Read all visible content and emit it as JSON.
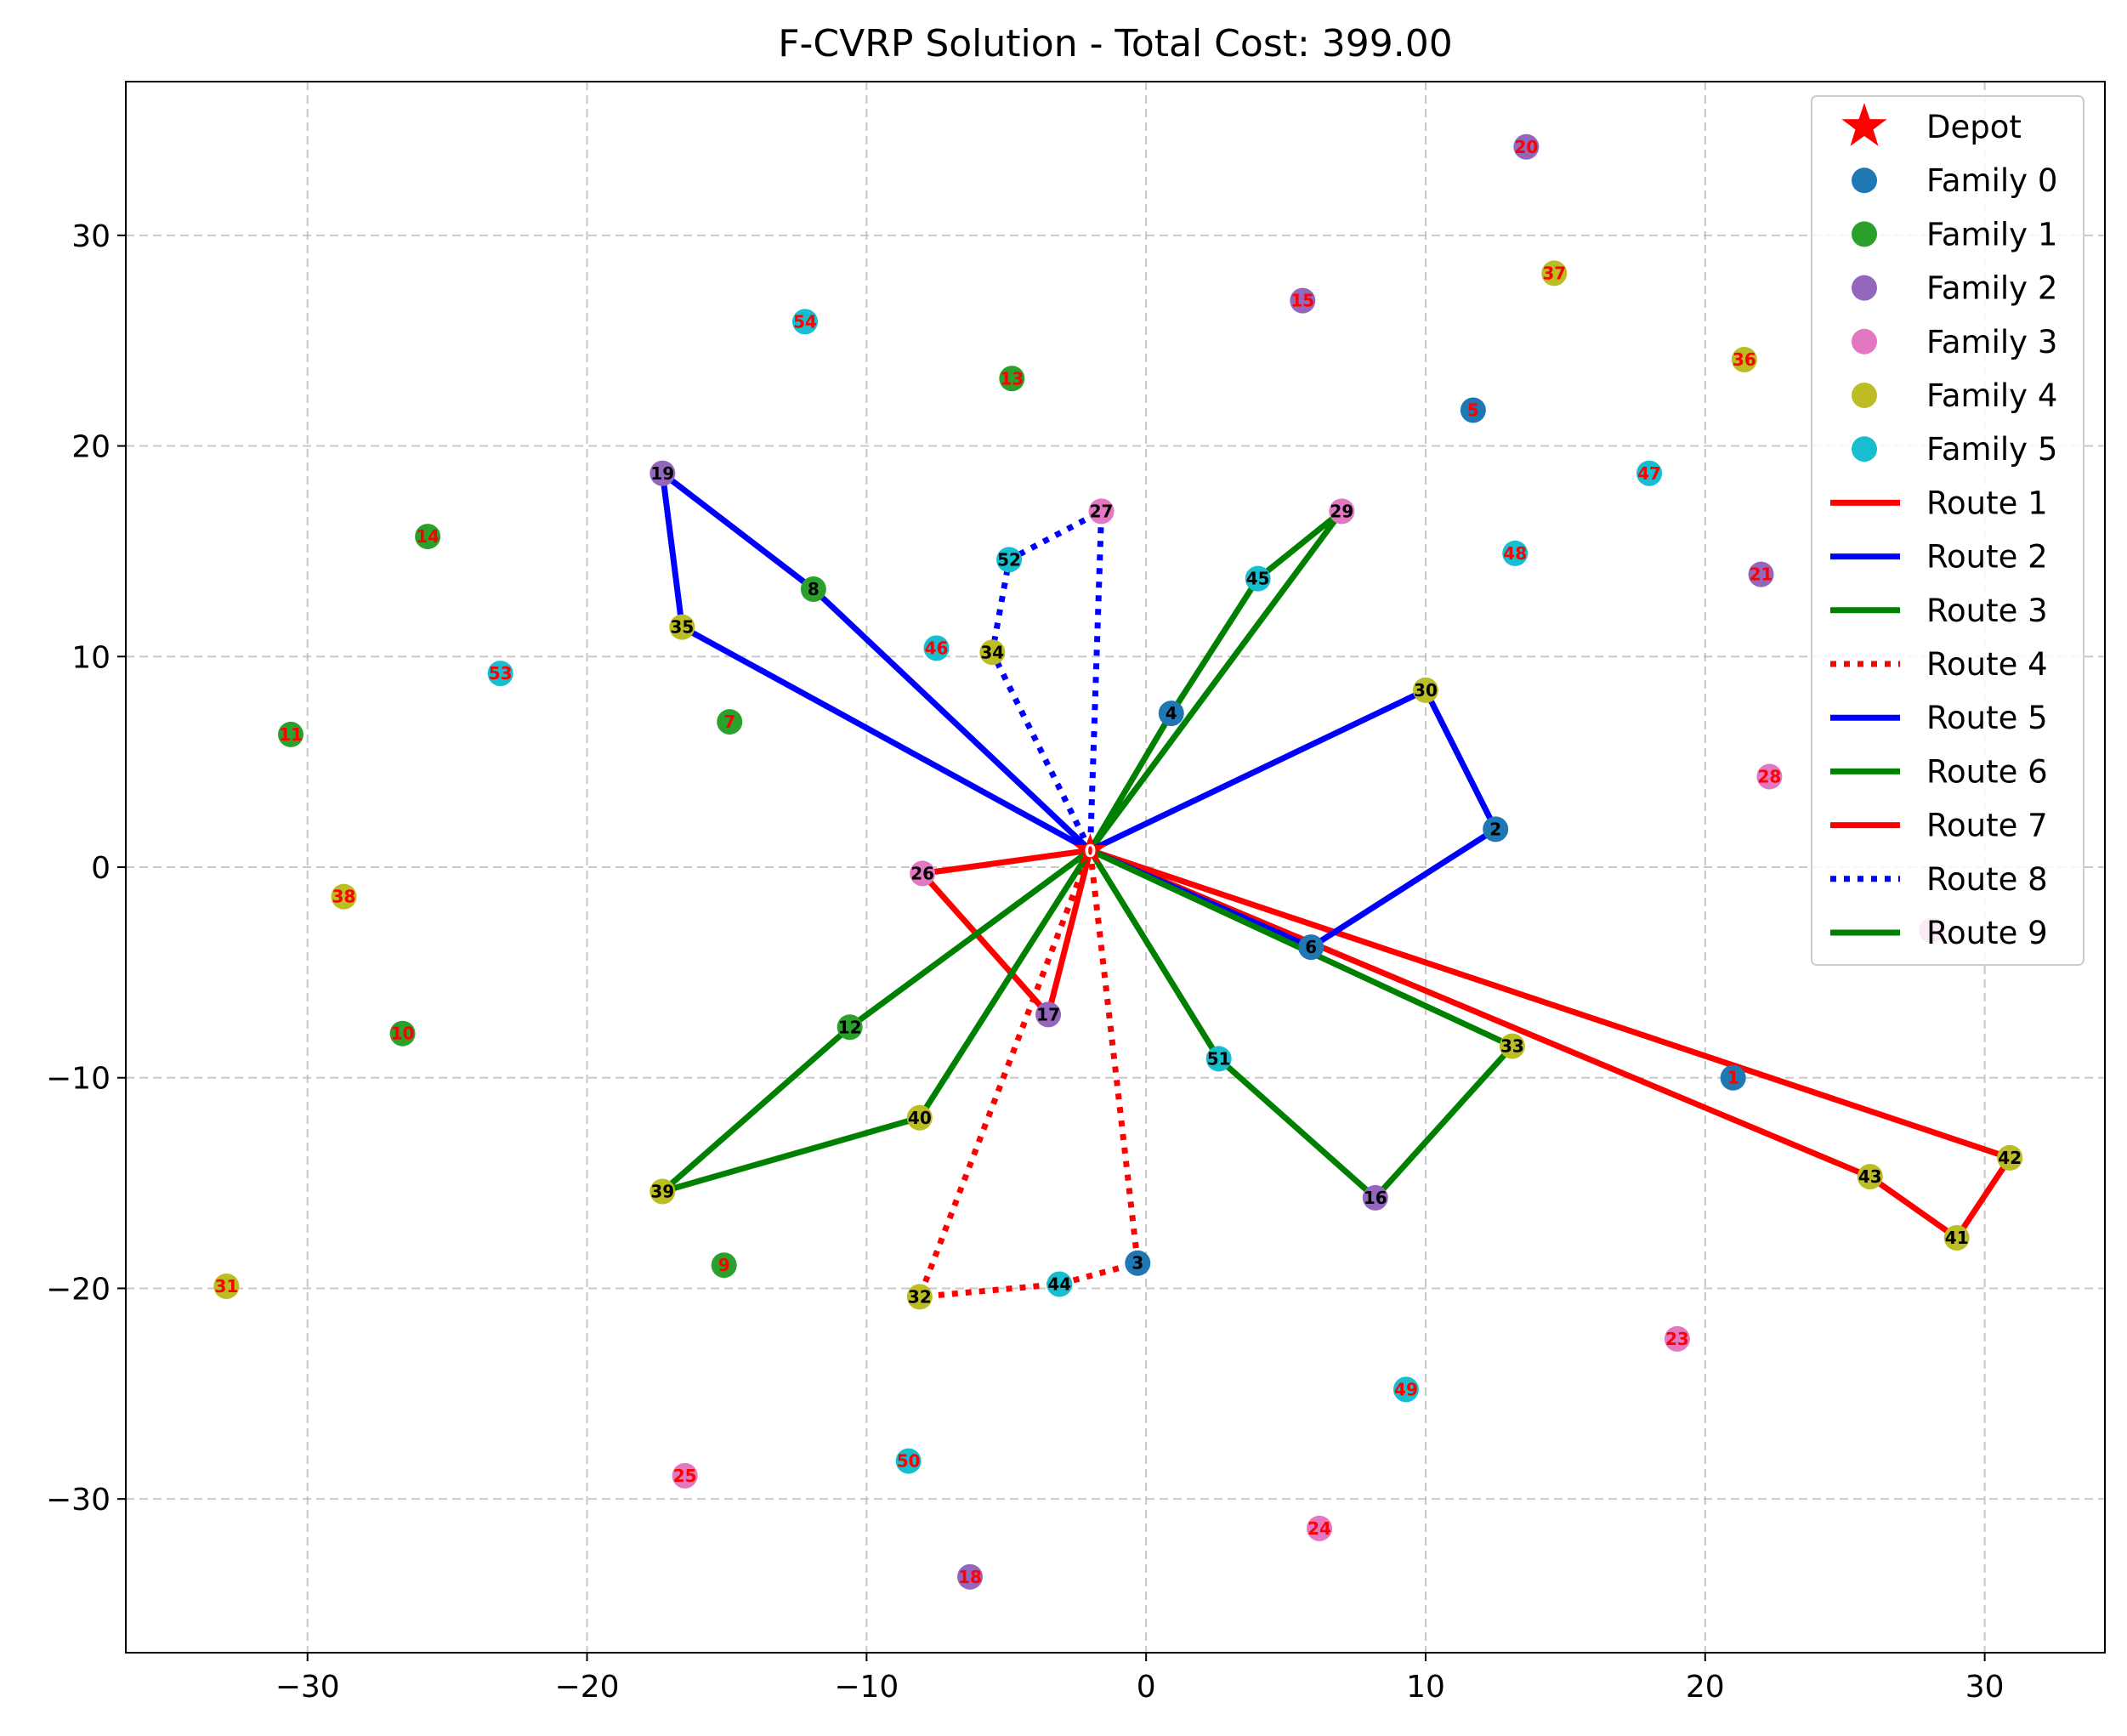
{
  "chart_data": {
    "type": "scatter",
    "title": "F-CVRP Solution - Total Cost: 399.00",
    "xlabel": "",
    "ylabel": "",
    "xlim": [
      -36.5,
      34.3
    ],
    "ylim": [
      -37.3,
      37.3
    ],
    "xticks": [
      -30,
      -20,
      -10,
      0,
      10,
      20,
      30
    ],
    "yticks": [
      -30,
      -20,
      -10,
      0,
      10,
      20,
      30
    ],
    "grid": true,
    "legend_position": "top-right",
    "depot": {
      "label": "0",
      "x": -2,
      "y": 0.8,
      "name": "Depot",
      "color": "#ff0000"
    },
    "families": [
      {
        "name": "Family 0",
        "color": "#1f77b4"
      },
      {
        "name": "Family 1",
        "color": "#2ca02c"
      },
      {
        "name": "Family 2",
        "color": "#9467bd"
      },
      {
        "name": "Family 3",
        "color": "#e377c2"
      },
      {
        "name": "Family 4",
        "color": "#bcbd22"
      },
      {
        "name": "Family 5",
        "color": "#17becf"
      }
    ],
    "nodes": [
      {
        "id": "1",
        "x": 21,
        "y": -10,
        "family": 0,
        "visited": false
      },
      {
        "id": "2",
        "x": 12.5,
        "y": 1.8,
        "family": 0,
        "visited": true
      },
      {
        "id": "3",
        "x": -0.3,
        "y": -18.8,
        "family": 0,
        "visited": true
      },
      {
        "id": "4",
        "x": 0.9,
        "y": 7.3,
        "family": 0,
        "visited": true
      },
      {
        "id": "5",
        "x": 11.7,
        "y": 21.7,
        "family": 0,
        "visited": false
      },
      {
        "id": "6",
        "x": 5.9,
        "y": -3.8,
        "family": 0,
        "visited": true
      },
      {
        "id": "7",
        "x": -14.9,
        "y": 6.9,
        "family": 1,
        "visited": false
      },
      {
        "id": "8",
        "x": -11.9,
        "y": 13.2,
        "family": 1,
        "visited": true
      },
      {
        "id": "9",
        "x": -15.1,
        "y": -18.9,
        "family": 1,
        "visited": false
      },
      {
        "id": "10",
        "x": -26.6,
        "y": -7.9,
        "family": 1,
        "visited": false
      },
      {
        "id": "11",
        "x": -30.6,
        "y": 6.3,
        "family": 1,
        "visited": false
      },
      {
        "id": "12",
        "x": -10.6,
        "y": -7.6,
        "family": 1,
        "visited": true
      },
      {
        "id": "13",
        "x": -4.8,
        "y": 23.2,
        "family": 1,
        "visited": false
      },
      {
        "id": "14",
        "x": -25.7,
        "y": 15.7,
        "family": 1,
        "visited": false
      },
      {
        "id": "15",
        "x": 5.6,
        "y": 26.9,
        "family": 2,
        "visited": false
      },
      {
        "id": "16",
        "x": 8.2,
        "y": -15.7,
        "family": 2,
        "visited": true
      },
      {
        "id": "17",
        "x": -3.5,
        "y": -7.0,
        "family": 2,
        "visited": true
      },
      {
        "id": "18",
        "x": -6.3,
        "y": -33.7,
        "family": 2,
        "visited": false
      },
      {
        "id": "19",
        "x": -17.3,
        "y": 18.7,
        "family": 2,
        "visited": true
      },
      {
        "id": "20",
        "x": 13.6,
        "y": 34.2,
        "family": 2,
        "visited": false
      },
      {
        "id": "21",
        "x": 22.0,
        "y": 13.9,
        "family": 2,
        "visited": false
      },
      {
        "id": "23",
        "x": 19.0,
        "y": -22.4,
        "family": 3,
        "visited": false
      },
      {
        "id": "24",
        "x": 6.2,
        "y": -31.4,
        "family": 3,
        "visited": false
      },
      {
        "id": "25",
        "x": -16.5,
        "y": -28.9,
        "family": 3,
        "visited": false
      },
      {
        "id": "26",
        "x": -8.0,
        "y": -0.3,
        "family": 3,
        "visited": true
      },
      {
        "id": "27",
        "x": -1.6,
        "y": 16.9,
        "family": 3,
        "visited": true
      },
      {
        "id": "28",
        "x": 22.3,
        "y": 4.3,
        "family": 3,
        "visited": false
      },
      {
        "id": "29",
        "x": 7.0,
        "y": 16.9,
        "family": 3,
        "visited": true
      },
      {
        "id": "30",
        "x": 10.0,
        "y": 8.4,
        "family": 4,
        "visited": true
      },
      {
        "id": "31",
        "x": -32.9,
        "y": -19.9,
        "family": 4,
        "visited": false
      },
      {
        "id": "32",
        "x": -8.1,
        "y": -20.4,
        "family": 4,
        "visited": true
      },
      {
        "id": "33",
        "x": 13.1,
        "y": -8.5,
        "family": 4,
        "visited": true
      },
      {
        "id": "34",
        "x": -5.5,
        "y": 10.2,
        "family": 4,
        "visited": true
      },
      {
        "id": "35",
        "x": -16.6,
        "y": 11.4,
        "family": 4,
        "visited": true
      },
      {
        "id": "36",
        "x": 21.4,
        "y": 24.1,
        "family": 4,
        "visited": false
      },
      {
        "id": "37",
        "x": 14.6,
        "y": 28.2,
        "family": 4,
        "visited": false
      },
      {
        "id": "38",
        "x": -28.7,
        "y": -1.4,
        "family": 4,
        "visited": false
      },
      {
        "id": "39",
        "x": -17.3,
        "y": -15.4,
        "family": 4,
        "visited": true
      },
      {
        "id": "40",
        "x": -8.1,
        "y": -11.9,
        "family": 4,
        "visited": true
      },
      {
        "id": "41",
        "x": 29.0,
        "y": -17.6,
        "family": 4,
        "visited": true
      },
      {
        "id": "42",
        "x": 30.9,
        "y": -13.8,
        "family": 4,
        "visited": true
      },
      {
        "id": "43",
        "x": 25.9,
        "y": -14.7,
        "family": 4,
        "visited": true
      },
      {
        "id": "44",
        "x": -3.1,
        "y": -19.8,
        "family": 5,
        "visited": true
      },
      {
        "id": "45",
        "x": 4.0,
        "y": 13.7,
        "family": 5,
        "visited": true
      },
      {
        "id": "46",
        "x": -7.5,
        "y": 10.4,
        "family": 5,
        "visited": false
      },
      {
        "id": "47",
        "x": 18.0,
        "y": 18.7,
        "family": 5,
        "visited": false
      },
      {
        "id": "48",
        "x": 13.2,
        "y": 14.9,
        "family": 5,
        "visited": false
      },
      {
        "id": "49",
        "x": 9.3,
        "y": -24.8,
        "family": 5,
        "visited": false
      },
      {
        "id": "50",
        "x": -8.5,
        "y": -28.2,
        "family": 5,
        "visited": false
      },
      {
        "id": "51",
        "x": 2.6,
        "y": -9.1,
        "family": 5,
        "visited": true
      },
      {
        "id": "52",
        "x": -4.9,
        "y": 14.6,
        "family": 5,
        "visited": true
      },
      {
        "id": "53",
        "x": -23.1,
        "y": 9.2,
        "family": 5,
        "visited": false
      },
      {
        "id": "54",
        "x": -12.2,
        "y": 25.9,
        "family": 5,
        "visited": false
      }
    ],
    "hidden_nodes": [
      {
        "x": 28.1,
        "y": -3.0,
        "family": 3
      }
    ],
    "routes": [
      {
        "name": "Route 1",
        "color": "#ff0000",
        "style": "solid",
        "stops": [
          "0",
          "42",
          "41",
          "43",
          "0"
        ]
      },
      {
        "name": "Route 2",
        "color": "#0000ff",
        "style": "solid",
        "stops": [
          "0",
          "8",
          "19",
          "35",
          "0"
        ]
      },
      {
        "name": "Route 3",
        "color": "#008000",
        "style": "solid",
        "stops": [
          "0",
          "29",
          "45",
          "4",
          "0"
        ]
      },
      {
        "name": "Route 4",
        "color": "#ff0000",
        "style": "dotted",
        "stops": [
          "0",
          "3",
          "44",
          "32",
          "0"
        ]
      },
      {
        "name": "Route 5",
        "color": "#0000ff",
        "style": "solid",
        "stops": [
          "0",
          "30",
          "2",
          "6",
          "0"
        ]
      },
      {
        "name": "Route 6",
        "color": "#008000",
        "style": "solid",
        "stops": [
          "0",
          "33",
          "16",
          "51",
          "0"
        ]
      },
      {
        "name": "Route 7",
        "color": "#ff0000",
        "style": "solid",
        "stops": [
          "0",
          "26",
          "17",
          "0"
        ]
      },
      {
        "name": "Route 8",
        "color": "#0000ff",
        "style": "dotted",
        "stops": [
          "0",
          "34",
          "52",
          "27",
          "0"
        ]
      },
      {
        "name": "Route 9",
        "color": "#008000",
        "style": "solid",
        "stops": [
          "0",
          "12",
          "39",
          "40",
          "0"
        ]
      }
    ]
  }
}
